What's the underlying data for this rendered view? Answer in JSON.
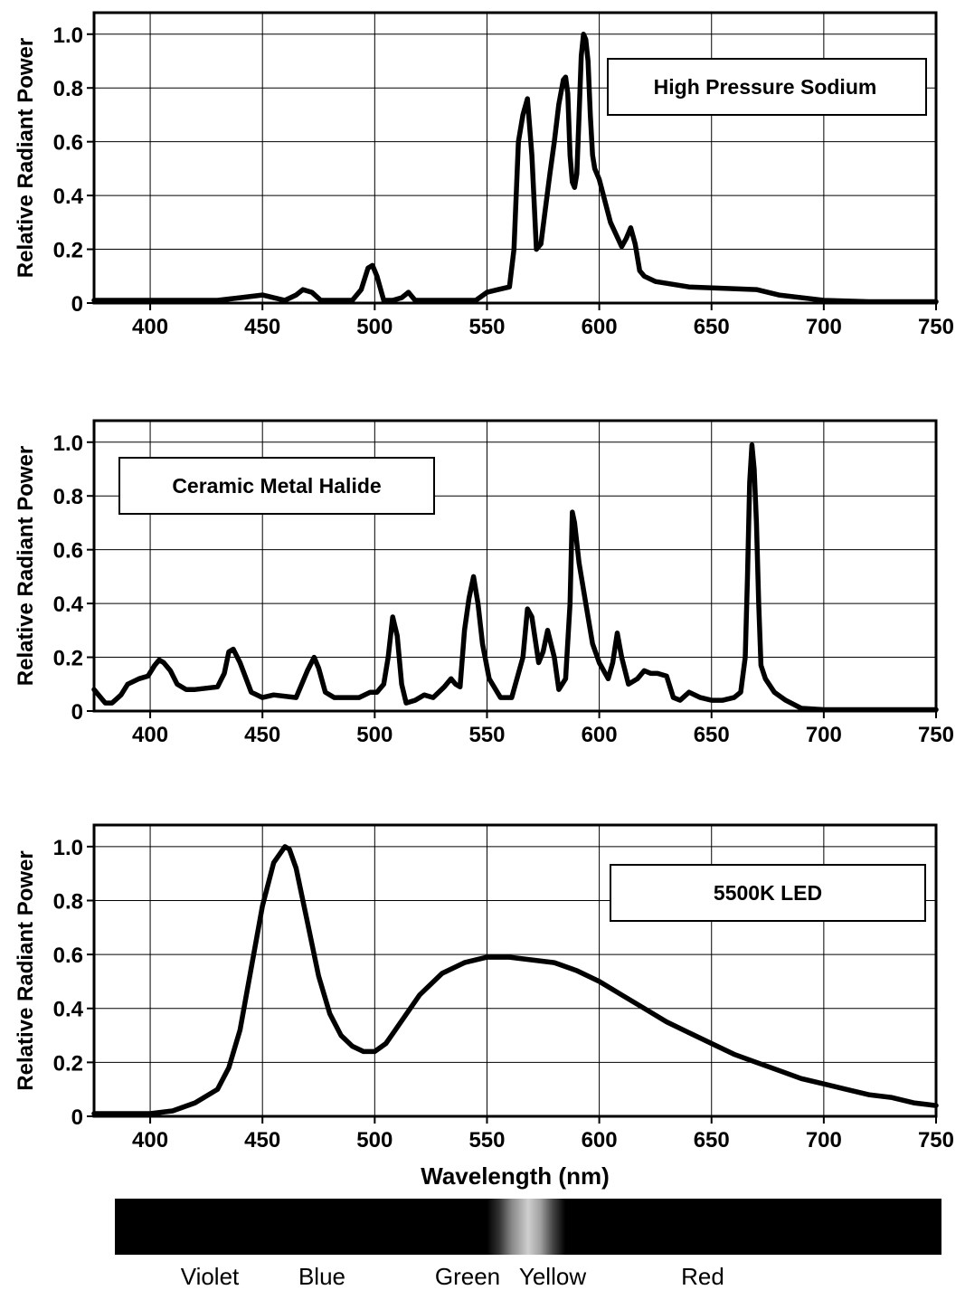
{
  "chart_data": [
    {
      "type": "line",
      "legend": "High Pressure Sodium",
      "ylabel": "Relative Radiant Power",
      "xlabel": "",
      "xlim": [
        375,
        750
      ],
      "ylim": [
        0,
        1.08
      ],
      "xticks": [
        "400",
        "450",
        "500",
        "550",
        "600",
        "650",
        "700",
        "750"
      ],
      "yticks": [
        "0",
        "0.2",
        "0.4",
        "0.6",
        "0.8",
        "1.0"
      ],
      "grid": true,
      "legend_position": "top-right",
      "x": [
        375,
        400,
        430,
        440,
        450,
        455,
        460,
        465,
        468,
        472,
        476,
        480,
        490,
        494,
        497,
        499,
        501,
        504,
        508,
        512,
        515,
        518,
        522,
        530,
        545,
        550,
        555,
        560,
        562,
        564,
        566,
        568,
        570,
        572,
        574,
        576,
        578,
        580,
        582,
        584,
        585,
        586,
        587,
        588,
        589,
        590,
        591,
        592,
        593,
        594,
        595,
        596,
        597,
        598,
        600,
        605,
        610,
        612,
        614,
        616,
        618,
        620,
        625,
        640,
        670,
        680,
        700,
        720,
        750
      ],
      "y": [
        0.01,
        0.01,
        0.01,
        0.02,
        0.03,
        0.02,
        0.01,
        0.03,
        0.05,
        0.04,
        0.01,
        0.01,
        0.01,
        0.05,
        0.13,
        0.14,
        0.1,
        0.01,
        0.01,
        0.02,
        0.04,
        0.01,
        0.01,
        0.01,
        0.01,
        0.04,
        0.05,
        0.06,
        0.2,
        0.6,
        0.7,
        0.76,
        0.55,
        0.2,
        0.22,
        0.35,
        0.48,
        0.6,
        0.74,
        0.83,
        0.84,
        0.78,
        0.55,
        0.45,
        0.43,
        0.48,
        0.7,
        0.92,
        1.0,
        0.98,
        0.9,
        0.7,
        0.55,
        0.5,
        0.46,
        0.3,
        0.21,
        0.24,
        0.28,
        0.22,
        0.12,
        0.1,
        0.08,
        0.06,
        0.05,
        0.03,
        0.01,
        0.005,
        0.005
      ]
    },
    {
      "type": "line",
      "legend": "Ceramic Metal Halide",
      "ylabel": "Relative Radiant Power",
      "xlabel": "",
      "xlim": [
        375,
        750
      ],
      "ylim": [
        0,
        1.08
      ],
      "xticks": [
        "400",
        "450",
        "500",
        "550",
        "600",
        "650",
        "700",
        "750"
      ],
      "yticks": [
        "0",
        "0.2",
        "0.4",
        "0.6",
        "0.8",
        "1.0"
      ],
      "grid": true,
      "legend_position": "top-left",
      "x": [
        375,
        377,
        380,
        383,
        387,
        390,
        395,
        399,
        402,
        404,
        406,
        409,
        412,
        416,
        420,
        430,
        433,
        435,
        437,
        440,
        445,
        450,
        455,
        465,
        470,
        473,
        475,
        478,
        482,
        488,
        493,
        498,
        501,
        504,
        506,
        508,
        510,
        512,
        514,
        518,
        522,
        526,
        531,
        534,
        536,
        538,
        540,
        542,
        544,
        546,
        548,
        551,
        556,
        561,
        566,
        568,
        570,
        573,
        575,
        577,
        580,
        582,
        585,
        587,
        588,
        589,
        591,
        594,
        597,
        600,
        604,
        606,
        608,
        610,
        613,
        617,
        620,
        623,
        626,
        630,
        633,
        636,
        640,
        645,
        650,
        655,
        660,
        663,
        665,
        666,
        667,
        668,
        669,
        670,
        671,
        672,
        674,
        678,
        683,
        690,
        700,
        720,
        750
      ],
      "y": [
        0.08,
        0.06,
        0.03,
        0.03,
        0.06,
        0.1,
        0.12,
        0.13,
        0.17,
        0.19,
        0.18,
        0.15,
        0.1,
        0.08,
        0.08,
        0.09,
        0.14,
        0.22,
        0.23,
        0.18,
        0.07,
        0.05,
        0.06,
        0.05,
        0.15,
        0.2,
        0.16,
        0.07,
        0.05,
        0.05,
        0.05,
        0.07,
        0.07,
        0.1,
        0.2,
        0.35,
        0.28,
        0.1,
        0.03,
        0.04,
        0.06,
        0.05,
        0.09,
        0.12,
        0.1,
        0.09,
        0.3,
        0.42,
        0.5,
        0.4,
        0.25,
        0.12,
        0.05,
        0.05,
        0.2,
        0.38,
        0.35,
        0.18,
        0.22,
        0.3,
        0.2,
        0.08,
        0.12,
        0.4,
        0.74,
        0.7,
        0.55,
        0.4,
        0.25,
        0.18,
        0.12,
        0.18,
        0.29,
        0.2,
        0.1,
        0.12,
        0.15,
        0.14,
        0.14,
        0.13,
        0.05,
        0.04,
        0.07,
        0.05,
        0.04,
        0.04,
        0.05,
        0.07,
        0.2,
        0.5,
        0.85,
        0.99,
        0.9,
        0.7,
        0.4,
        0.17,
        0.12,
        0.07,
        0.04,
        0.01,
        0.005,
        0.005,
        0.005
      ]
    },
    {
      "type": "line",
      "legend": "5500K LED",
      "ylabel": "Relative Radiant Power",
      "xlabel": "Wavelength (nm)",
      "xlim": [
        375,
        750
      ],
      "ylim": [
        0,
        1.08
      ],
      "xticks": [
        "400",
        "450",
        "500",
        "550",
        "600",
        "650",
        "700",
        "750"
      ],
      "yticks": [
        "0",
        "0.2",
        "0.4",
        "0.6",
        "0.8",
        "1.0"
      ],
      "grid": true,
      "legend_position": "top-right",
      "x": [
        375,
        390,
        400,
        410,
        420,
        430,
        435,
        440,
        445,
        450,
        455,
        460,
        462,
        465,
        470,
        475,
        480,
        485,
        490,
        495,
        500,
        505,
        510,
        520,
        530,
        540,
        550,
        560,
        570,
        580,
        590,
        600,
        610,
        620,
        630,
        640,
        650,
        660,
        670,
        680,
        690,
        700,
        710,
        720,
        730,
        740,
        750
      ],
      "y": [
        0.01,
        0.01,
        0.01,
        0.02,
        0.05,
        0.1,
        0.18,
        0.32,
        0.55,
        0.78,
        0.94,
        1.0,
        0.99,
        0.92,
        0.72,
        0.52,
        0.38,
        0.3,
        0.26,
        0.24,
        0.24,
        0.27,
        0.33,
        0.45,
        0.53,
        0.57,
        0.59,
        0.59,
        0.58,
        0.57,
        0.54,
        0.5,
        0.45,
        0.4,
        0.35,
        0.31,
        0.27,
        0.23,
        0.2,
        0.17,
        0.14,
        0.12,
        0.1,
        0.08,
        0.07,
        0.05,
        0.04
      ]
    }
  ],
  "spectrum_labels": [
    "Violet",
    "Blue",
    "Green",
    "Yellow",
    "Red"
  ],
  "colors": {
    "line": "#000000",
    "grid": "#000000",
    "band": "#000000"
  }
}
